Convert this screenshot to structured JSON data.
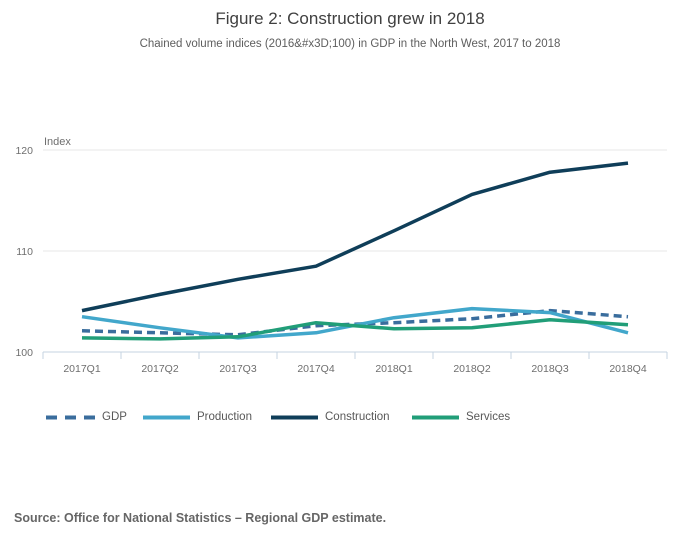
{
  "source": "Source: Office for National Statistics – Regional GDP estimate.",
  "chart_data": {
    "type": "line",
    "title": "Figure 2: Construction grew in 2018",
    "subtitle": "Chained volume indices (2016&#x3D;100) in GDP in the North West, 2017 to 2018",
    "ylabel": "Index",
    "xlabel": "",
    "categories": [
      "2017Q1",
      "2017Q2",
      "2017Q3",
      "2017Q4",
      "2018Q1",
      "2018Q2",
      "2018Q3",
      "2018Q4"
    ],
    "series": [
      {
        "name": "GDP",
        "color": "#3a6d9d",
        "dashed": true,
        "values": [
          102.1,
          101.9,
          101.7,
          102.6,
          102.9,
          103.3,
          104.1,
          103.5
        ]
      },
      {
        "name": "Production",
        "color": "#42a7cb",
        "dashed": false,
        "values": [
          103.5,
          102.4,
          101.4,
          101.9,
          103.4,
          104.3,
          103.9,
          101.9
        ]
      },
      {
        "name": "Construction",
        "color": "#0f3e59",
        "dashed": false,
        "values": [
          104.1,
          105.7,
          107.2,
          108.5,
          112.0,
          115.6,
          117.8,
          118.7
        ]
      },
      {
        "name": "Services",
        "color": "#219e78",
        "dashed": false,
        "values": [
          101.4,
          101.3,
          101.5,
          102.9,
          102.3,
          102.4,
          103.2,
          102.7
        ]
      }
    ],
    "yticks": [
      100,
      110,
      120
    ],
    "ylim": [
      100,
      120
    ],
    "grid": true,
    "legend_position": "bottom",
    "colors": {
      "gridline": "#e7e7e7",
      "axis": "#c4d3e0",
      "tick_label": "#6e6e6e",
      "axis_title": "#6e6e6e"
    }
  }
}
